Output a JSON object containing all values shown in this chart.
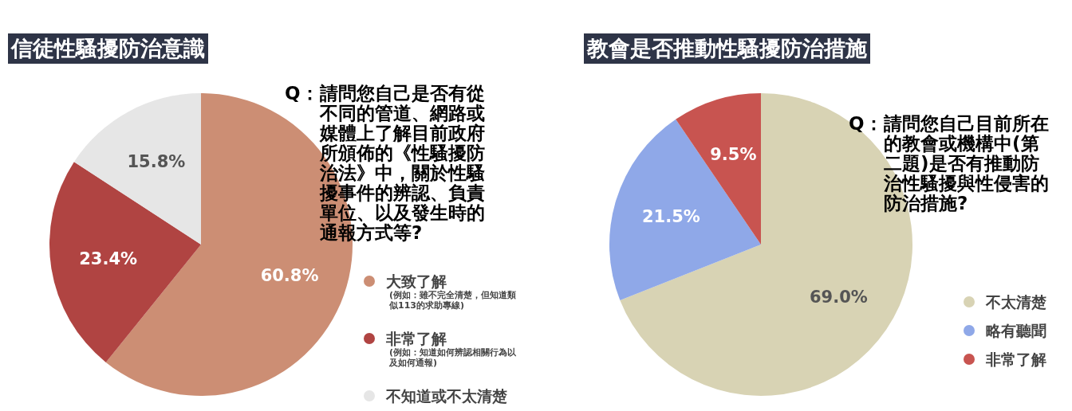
{
  "chart_data": [
    {
      "type": "pie",
      "title": "信徒性騷擾防治意識",
      "categories": [
        "大致了解",
        "非常了解",
        "不知道或不太清楚"
      ],
      "values": [
        60.8,
        23.4,
        15.8
      ],
      "value_labels": [
        "60.8%",
        "23.4%",
        "15.8%"
      ],
      "colors": [
        "#cc8e74",
        "#b04442",
        "#e6e6e6"
      ],
      "legend": "right",
      "annotations": [
        "Q：請問您自己是否有從不同的管道、網路或媒體上了解目前政府所頒佈的《性騷擾防治法》中，關於性騷擾事件的辨認、負責單位、以及發生時的通報方式等?",
        "(例如：雖不完全清楚，但知道類似113的求助專線)",
        "(例如：知道如何辨認相關行為以及如何通報)"
      ]
    },
    {
      "type": "pie",
      "title": "教會是否推動性騷擾防治措施",
      "categories": [
        "不太清楚",
        "略有聽聞",
        "非常了解"
      ],
      "values": [
        69.0,
        21.5,
        9.5
      ],
      "value_labels": [
        "69.0%",
        "21.5%",
        "9.5%"
      ],
      "colors": [
        "#d8d3b4",
        "#8fa8e8",
        "#c85450"
      ],
      "legend": "right",
      "annotations": [
        "Q：請問您自己目前所在的教會或機構中(第二題)是否有推動防治性騷擾與性侵害的防治措施?"
      ]
    }
  ]
}
